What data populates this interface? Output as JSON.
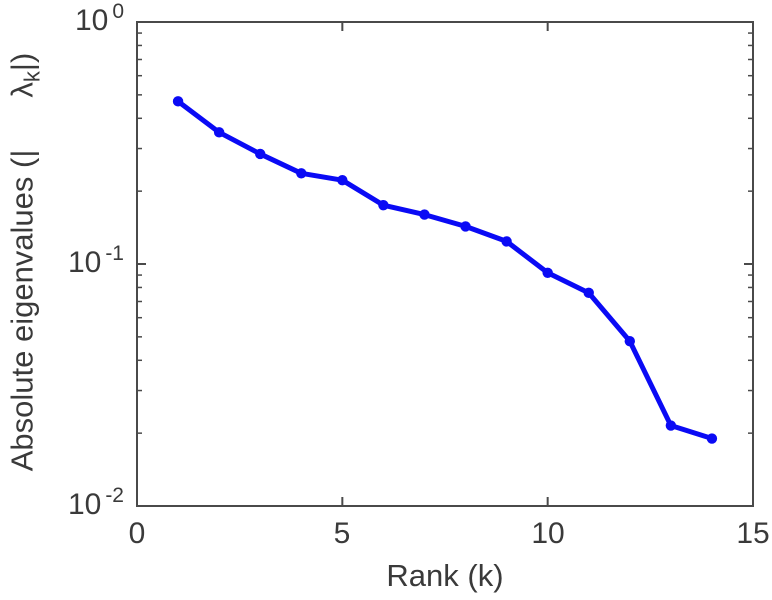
{
  "chart_data": {
    "type": "line",
    "title": "",
    "xlabel": "Rank (k)",
    "ylabel": "Absolute eigenvalues (|λ_k|)",
    "ylabel_parts": {
      "prefix": "Absolute eigenvalues (|",
      "symbol": "λ",
      "subscript": "k",
      "suffix": "|)"
    },
    "series": [
      {
        "name": "absolute-eigenvalues",
        "x": [
          1,
          2,
          3,
          4,
          5,
          6,
          7,
          8,
          9,
          10,
          11,
          12,
          13,
          14
        ],
        "values": [
          0.47,
          0.35,
          0.285,
          0.237,
          0.222,
          0.175,
          0.16,
          0.143,
          0.124,
          0.092,
          0.076,
          0.048,
          0.0215,
          0.019
        ]
      }
    ],
    "xlim": [
      0,
      15
    ],
    "ylim": [
      0.01,
      1
    ],
    "yscale": "log",
    "xscale": "linear",
    "grid": false,
    "legend": "none",
    "x_ticks": [
      0,
      5,
      10,
      15
    ],
    "x_tick_labels": [
      "0",
      "5",
      "10",
      "15"
    ],
    "y_ticks": [
      1,
      0.1,
      0.01
    ],
    "y_tick_labels": [
      {
        "base": "10",
        "exp": "0"
      },
      {
        "base": "10",
        "exp": "-1"
      },
      {
        "base": "10",
        "exp": "-2"
      }
    ],
    "line_color": "#0a0af5",
    "axis_color": "#4a4a4a",
    "marker": "circle"
  }
}
